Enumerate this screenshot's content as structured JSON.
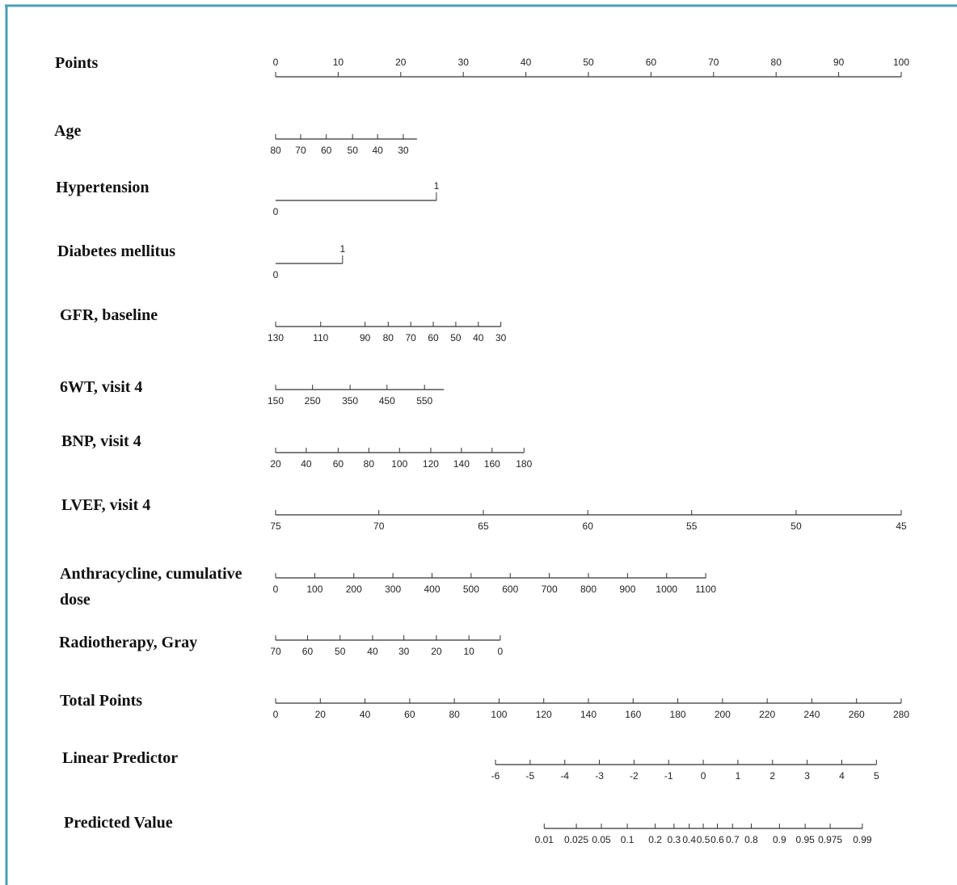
{
  "chart_data": {
    "type": "nomogram",
    "scales": [
      {
        "name": "Points",
        "scale": "points",
        "values": [
          0,
          10,
          20,
          30,
          40,
          50,
          60,
          70,
          80,
          90,
          100
        ],
        "points": [
          0,
          10,
          20,
          30,
          40,
          50,
          60,
          70,
          80,
          90,
          100
        ],
        "lim": [
          0,
          100
        ]
      },
      {
        "name": "Age",
        "scale": "points",
        "values": [
          80,
          70,
          60,
          50,
          40,
          30
        ],
        "points": [
          0,
          4,
          8.1,
          12.3,
          16.3,
          20.4
        ],
        "lim": [
          0,
          22.6
        ]
      },
      {
        "name": "Hypertension",
        "scale": "points",
        "values": [
          0,
          1
        ],
        "points": [
          0,
          25.7
        ],
        "lim": [
          0,
          25.7
        ]
      },
      {
        "name": "Diabetes mellitus",
        "scale": "points",
        "values": [
          0,
          1
        ],
        "points": [
          0,
          10.7
        ],
        "lim": [
          0,
          10.7
        ]
      },
      {
        "name": "GFR, baseline",
        "scale": "points",
        "values": [
          130,
          110,
          90,
          80,
          70,
          60,
          50,
          40,
          30
        ],
        "points": [
          0,
          7.2,
          14.3,
          18,
          21.6,
          25.2,
          28.8,
          32.4,
          36
        ],
        "lim": [
          0,
          36
        ]
      },
      {
        "name": "6WT, visit 4",
        "scale": "points",
        "values": [
          150,
          250,
          350,
          450,
          550
        ],
        "points": [
          0,
          5.9,
          11.9,
          17.8,
          23.8
        ],
        "lim": [
          0,
          26.9
        ]
      },
      {
        "name": "BNP, visit 4",
        "scale": "points",
        "values": [
          20,
          40,
          60,
          80,
          100,
          120,
          140,
          160,
          180
        ],
        "points": [
          0,
          4.9,
          10,
          14.9,
          19.8,
          24.8,
          29.7,
          34.6,
          39.7
        ],
        "lim": [
          0,
          39.7
        ]
      },
      {
        "name": "LVEF, visit 4",
        "scale": "points",
        "values": [
          75,
          70,
          65,
          60,
          55,
          50,
          45
        ],
        "points": [
          0,
          16.5,
          33.2,
          49.9,
          66.5,
          83.2,
          100
        ],
        "lim": [
          0,
          100
        ]
      },
      {
        "name": "Anthracycline, cumulative dose",
        "scale": "points",
        "values": [
          0,
          100,
          200,
          300,
          400,
          500,
          600,
          700,
          800,
          900,
          1000,
          1100
        ],
        "points": [
          0,
          6.25,
          12.5,
          18.75,
          25,
          31.25,
          37.5,
          43.75,
          50,
          56.25,
          62.5,
          68.75
        ],
        "lim": [
          0,
          68.75
        ]
      },
      {
        "name": "Radiotherapy, Gray",
        "scale": "points",
        "values": [
          70,
          60,
          50,
          40,
          30,
          20,
          10,
          0
        ],
        "points": [
          0,
          5.1,
          10.3,
          15.5,
          20.5,
          25.7,
          30.9,
          35.9
        ],
        "lim": [
          0,
          35.9
        ]
      },
      {
        "name": "Total Points",
        "scale": "total",
        "values": [
          0,
          20,
          40,
          60,
          80,
          100,
          120,
          140,
          160,
          180,
          200,
          220,
          240,
          260,
          280
        ],
        "points": [
          0,
          20,
          40,
          60,
          80,
          100,
          120,
          140,
          160,
          180,
          200,
          220,
          240,
          260,
          280
        ],
        "lim": [
          0,
          280
        ]
      },
      {
        "name": "Linear Predictor",
        "scale": "total",
        "values": [
          -6,
          -5,
          -4,
          -3,
          -2,
          -1,
          0,
          1,
          2,
          3,
          4,
          5
        ],
        "points": [
          98.4,
          113.9,
          129.4,
          144.9,
          160.4,
          175.9,
          191.4,
          206.9,
          222.4,
          237.9,
          253.4,
          268.9
        ],
        "lim": [
          98.4,
          268.9
        ]
      },
      {
        "name": "Predicted Value",
        "scale": "total",
        "values": [
          0.01,
          0.025,
          0.05,
          0.1,
          0.2,
          0.3,
          0.4,
          0.5,
          0.6,
          0.7,
          0.8,
          0.9,
          0.95,
          0.975,
          0.99
        ],
        "points": [
          120.2,
          134.6,
          145.8,
          157.4,
          169.9,
          178.3,
          185.1,
          191.4,
          197.7,
          204.5,
          212.9,
          225.5,
          237,
          248.2,
          262.6
        ],
        "lim": [
          120.2,
          262.6
        ]
      }
    ]
  }
}
